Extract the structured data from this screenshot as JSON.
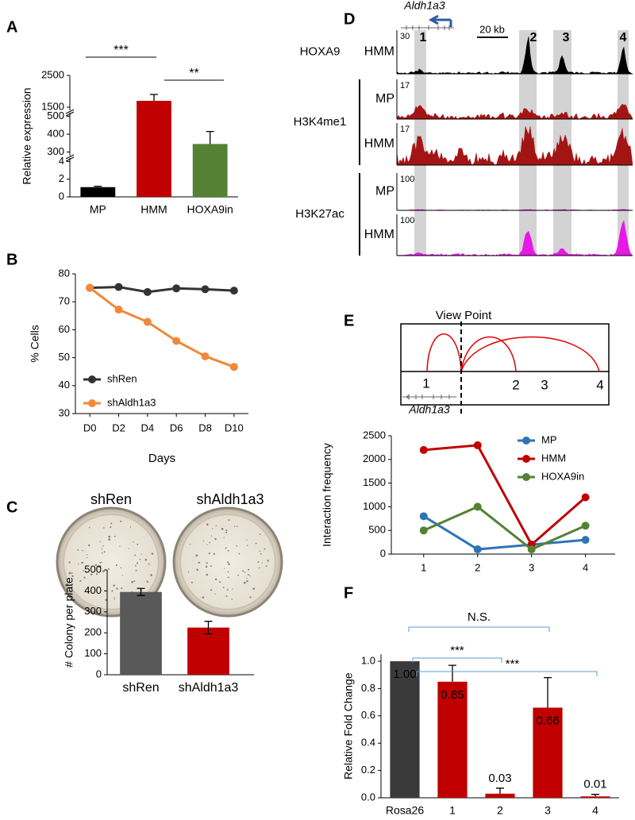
{
  "panel_labels": [
    "A",
    "B",
    "C",
    "D",
    "E",
    "F"
  ],
  "plate_labels": [
    "shRen",
    "shAldh1a3"
  ],
  "track_figure": {
    "gene": "Aldh1a3",
    "scale_bar": "20 kb",
    "regions": [
      "1",
      "2",
      "3",
      "4"
    ],
    "groups": [
      {
        "label": "HOXA9",
        "color": "#000000",
        "rows": [
          {
            "cell": "HMM",
            "scale": 30
          }
        ]
      },
      {
        "label": "H3K4me1",
        "color": "#a31515",
        "rows": [
          {
            "cell": "MP",
            "scale": 17
          },
          {
            "cell": "HMM",
            "scale": 17
          }
        ]
      },
      {
        "label": "H3K27ac",
        "color": "#e619e6",
        "rows": [
          {
            "cell": "MP",
            "scale": 100
          },
          {
            "cell": "HMM",
            "scale": 100
          }
        ]
      }
    ]
  },
  "loop_diagram": {
    "view_point": "View Point",
    "anchors": [
      "1",
      "2",
      "3",
      "4"
    ],
    "gene": "Aldh1a3"
  },
  "chart_data": [
    {
      "type": "broken_bar",
      "y_label": "Relative expression",
      "categories": [
        "MP",
        "HMM",
        "HOXA9in"
      ],
      "values": [
        1.1,
        1700,
        345
      ],
      "errors": [
        0.1,
        200,
        70
      ],
      "error_bars": "up",
      "colors": [
        "#000000",
        "#c00000",
        "#548235"
      ],
      "y_segments": [
        {
          "ylim": [
            0,
            4.4
          ],
          "yticks": [
            0,
            2,
            4
          ]
        },
        {
          "ylim": [
            280,
            520
          ],
          "yticks": [
            300,
            400,
            500
          ]
        },
        {
          "ylim": [
            1400,
            2500
          ],
          "yticks": [
            1500,
            2500
          ]
        }
      ],
      "annotations": [
        "***",
        "**"
      ]
    },
    {
      "type": "line",
      "x_label": "Days",
      "y_label": "% Cells",
      "categories": [
        "D0",
        "D2",
        "D4",
        "D6",
        "D8",
        "D10"
      ],
      "ylim": [
        30,
        80
      ],
      "yticks": [
        30,
        40,
        50,
        60,
        70,
        80
      ],
      "legend": "lower left",
      "series": [
        {
          "name": "shRen",
          "color": "#333333",
          "values": [
            75,
            75.3,
            73.5,
            74.8,
            74.5,
            74
          ]
        },
        {
          "name": "shAldh1a3",
          "color": "#f0883a",
          "values": [
            75,
            67.2,
            62.8,
            56,
            50.5,
            46.7
          ]
        }
      ]
    },
    {
      "type": "bar",
      "y_label": "# Colony per plate",
      "categories": [
        "shRen",
        "shAldh1a3"
      ],
      "values": [
        395,
        225
      ],
      "errors": [
        17,
        30
      ],
      "error_bars": "both",
      "colors": [
        "#595959",
        "#c00000"
      ],
      "ylim": [
        0,
        500
      ],
      "yticks": [
        0,
        100,
        200,
        300,
        400,
        500
      ]
    },
    {
      "type": "line",
      "y_label": "Interaction frequency",
      "x": [
        1,
        2,
        3,
        4
      ],
      "xlim": [
        0.4,
        4.55
      ],
      "xticks": [
        1,
        2,
        3,
        4
      ],
      "ylim": [
        0,
        2500
      ],
      "yticks": [
        0,
        500,
        1000,
        1500,
        2000,
        2500
      ],
      "legend": "upper right",
      "series": [
        {
          "name": "MP",
          "color": "#2e75b6",
          "values": [
            800,
            100,
            200,
            300
          ]
        },
        {
          "name": "HMM",
          "color": "#c00000",
          "values": [
            2200,
            2300,
            200,
            1200
          ]
        },
        {
          "name": "HOXA9in",
          "color": "#548235",
          "values": [
            500,
            1000,
            100,
            600
          ]
        }
      ]
    },
    {
      "type": "bar",
      "y_label": "Relative Fold Change",
      "categories": [
        "Rosa26",
        "1",
        "2",
        "3",
        "4"
      ],
      "values": [
        1.0,
        0.85,
        0.03,
        0.66,
        0.01
      ],
      "value_labels": [
        "1.00",
        "0.85",
        "0.03",
        "0.66",
        "0.01"
      ],
      "errors": [
        null,
        0.12,
        0.04,
        0.22,
        0.015
      ],
      "error_bars": "up",
      "colors": [
        "#3a3a3a",
        "#c00000",
        "#c00000",
        "#c00000",
        "#c00000"
      ],
      "ylim": [
        0,
        1.05
      ],
      "yticks": [
        {
          "value": 0,
          "label": "0.0"
        },
        0.2,
        0.4,
        0.6,
        0.8,
        {
          "value": 1,
          "label": "1.0"
        }
      ],
      "annotations": [
        "N.S.",
        "***",
        "***"
      ]
    }
  ]
}
